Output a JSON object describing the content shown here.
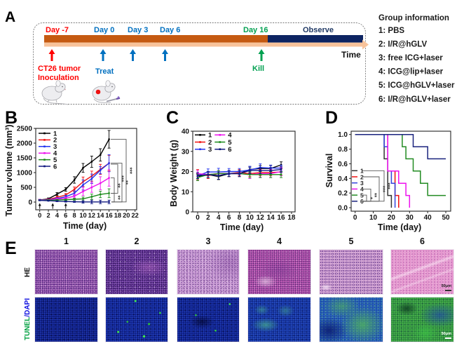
{
  "panel_labels": {
    "a": "A",
    "b": "B",
    "c": "C",
    "d": "D",
    "e": "E"
  },
  "timeline": {
    "milestones": [
      {
        "label": "Day -7",
        "color": "#FF0000"
      },
      {
        "label": "Day 0",
        "color": "#0070C0"
      },
      {
        "label": "Day 3",
        "color": "#0070C0"
      },
      {
        "label": "Day 6",
        "color": "#0070C0"
      },
      {
        "label": "Day 16",
        "color": "#00A050"
      }
    ],
    "observe_label": "Observe",
    "time_label": "Time",
    "inoculation_lines": [
      "CT26 tumor",
      "Inoculation"
    ],
    "treat_label": "Treat",
    "kill_label": "Kill",
    "colors": {
      "treatment_phase": "#C55A11",
      "observe_phase": "#0D2462",
      "time_arrow": "#F8C39B",
      "inoculation": "#FF0000",
      "treat": "#0070C0",
      "kill": "#00A050",
      "observe_text": "#1F3864"
    }
  },
  "group_info": {
    "title": "Group information",
    "items": [
      "1:  PBS",
      "2:  I/R@hGLV",
      "3:  free ICG+laser",
      "4:  ICG@lip+laser",
      "5:  ICG@hGLV+laser",
      "6:  I/R@hGLV+laser"
    ]
  },
  "chart_data": [
    {
      "id": "tumour-volume",
      "panel": "B",
      "type": "line",
      "title": "",
      "xlabel": "Time (day)",
      "ylabel": "Tumour volume (mm³)",
      "x": [
        0,
        2,
        4,
        6,
        8,
        10,
        12,
        14,
        16
      ],
      "xlim": [
        -0.92,
        22.38
      ],
      "ylim": [
        -262,
        2500
      ],
      "xticks": [
        0,
        2,
        4,
        6,
        8,
        10,
        12,
        14,
        16,
        18,
        20,
        22
      ],
      "xtick_labels": [
        "0",
        "2",
        "4",
        "6",
        "8",
        "10",
        "12",
        "14",
        "16",
        "18",
        "20",
        "22"
      ],
      "yticks": [
        0,
        500,
        1000,
        1500,
        2000,
        2500
      ],
      "ytick_labels": [
        "0",
        "500",
        "1000",
        "1500",
        "2000",
        "2500"
      ],
      "grid": false,
      "legend": "top-left",
      "colors": [
        "#000000",
        "#F01010",
        "#2233EE",
        "#EE11EE",
        "#1A8A1A",
        "#101880"
      ],
      "series": [
        {
          "name": "1",
          "values": [
            70,
            110,
            270,
            430,
            750,
            1160,
            1370,
            1600,
            2130
          ],
          "errors": [
            20,
            30,
            50,
            60,
            110,
            150,
            190,
            210,
            300
          ]
        },
        {
          "name": "2",
          "values": [
            70,
            90,
            160,
            240,
            430,
            690,
            880,
            1110,
            1320
          ],
          "errors": [
            20,
            20,
            40,
            50,
            80,
            160,
            170,
            170,
            260
          ]
        },
        {
          "name": "3",
          "values": [
            70,
            80,
            120,
            180,
            300,
            580,
            790,
            1080,
            1320
          ],
          "errors": [
            20,
            20,
            30,
            50,
            80,
            170,
            160,
            120,
            290
          ]
        },
        {
          "name": "4",
          "values": [
            70,
            75,
            100,
            130,
            200,
            360,
            500,
            640,
            820
          ],
          "errors": [
            20,
            20,
            30,
            40,
            60,
            140,
            170,
            220,
            280
          ]
        },
        {
          "name": "5",
          "values": [
            65,
            65,
            70,
            80,
            95,
            110,
            180,
            260,
            300
          ],
          "errors": [
            15,
            15,
            20,
            20,
            30,
            60,
            90,
            110,
            150
          ]
        },
        {
          "name": "6",
          "values": [
            60,
            45,
            30,
            20,
            10,
            5,
            5,
            5,
            5
          ],
          "errors": [
            10,
            10,
            15,
            20,
            20,
            40,
            60,
            60,
            60
          ]
        }
      ],
      "treatment_days": [
        0,
        3,
        6
      ],
      "significance": [
        {
          "groups": [
            "1",
            "6"
          ],
          "label": "***"
        },
        {
          "groups": [
            "2",
            "6"
          ],
          "label": "**"
        },
        {
          "groups": [
            "3",
            "5"
          ],
          "label": "***"
        },
        {
          "groups": [
            "4",
            "5"
          ],
          "label": "**"
        },
        {
          "groups": [
            "5",
            "6"
          ],
          "label": "**"
        }
      ]
    },
    {
      "id": "body-weight",
      "panel": "C",
      "type": "line",
      "title": "",
      "xlabel": "Time (day)",
      "ylabel": "Body Weight (g)",
      "x": [
        0,
        2,
        4,
        6,
        8,
        10,
        12,
        14,
        16
      ],
      "xlim": [
        -0.94,
        18.68
      ],
      "ylim": [
        0,
        40
      ],
      "xticks": [
        0,
        2,
        4,
        6,
        8,
        10,
        12,
        14,
        16,
        18
      ],
      "xtick_labels": [
        "0",
        "2",
        "4",
        "6",
        "8",
        "10",
        "12",
        "14",
        "16",
        "18"
      ],
      "yticks": [
        0,
        10,
        20,
        30,
        40
      ],
      "ytick_labels": [
        "0",
        "10",
        "20",
        "30",
        "40"
      ],
      "grid": false,
      "legend": "top-left",
      "colors": [
        "#000000",
        "#F01010",
        "#2233EE",
        "#EE11EE",
        "#1A8A1A",
        "#101880"
      ],
      "series": [
        {
          "name": "1",
          "values": [
            17.5,
            18.5,
            17.5,
            19,
            19,
            21,
            21.5,
            21.5,
            23.3
          ],
          "errors": [
            1.5,
            1.5,
            1.5,
            1.5,
            1.5,
            1.5,
            1.5,
            1.5,
            1.5
          ]
        },
        {
          "name": "2",
          "values": [
            18.5,
            18,
            19,
            19,
            19.5,
            19,
            19.5,
            19.5,
            19.8
          ],
          "errors": [
            2.5,
            1.5,
            1.5,
            1.5,
            1.5,
            1.5,
            1.5,
            1.5,
            1.5
          ]
        },
        {
          "name": "3",
          "values": [
            18,
            19.8,
            19.8,
            20,
            20,
            20.8,
            22,
            21.7,
            21.7
          ],
          "errors": [
            1.5,
            1.5,
            1.8,
            1.5,
            1.5,
            1.8,
            1.8,
            1.5,
            1.5
          ]
        },
        {
          "name": "4",
          "values": [
            19,
            18.5,
            19,
            19,
            19,
            18.5,
            19,
            19,
            20
          ],
          "errors": [
            1.5,
            1.5,
            1.5,
            1.5,
            1.5,
            2,
            1.8,
            2,
            2
          ]
        },
        {
          "name": "5",
          "values": [
            17,
            18.5,
            19,
            19,
            19,
            18.5,
            18.5,
            18.5,
            18.5
          ],
          "errors": [
            1.5,
            1.5,
            1.5,
            1.5,
            1.5,
            1.5,
            1.5,
            1.5,
            1.5
          ]
        },
        {
          "name": "6",
          "values": [
            18,
            18.5,
            18,
            19,
            19,
            20.5,
            20.5,
            20.5,
            21
          ],
          "errors": [
            1.5,
            1.5,
            1.8,
            1.5,
            1.5,
            1.5,
            1.5,
            1.5,
            1.5
          ]
        }
      ]
    },
    {
      "id": "survival",
      "panel": "D",
      "type": "line",
      "subtype": "kaplan-meier-step",
      "title": "",
      "xlabel": "Time (day)",
      "ylabel": "Survival",
      "xlim": [
        -2.2,
        52.7
      ],
      "ylim": [
        -0.048,
        1.045
      ],
      "xticks": [
        0,
        10,
        20,
        30,
        40,
        50
      ],
      "xtick_labels": [
        "0",
        "10",
        "20",
        "30",
        "40",
        "50"
      ],
      "yticks": [
        0,
        0.2,
        0.4,
        0.6,
        0.8,
        1.0
      ],
      "ytick_labels": [
        "0.0",
        "0.2",
        "0.4",
        "0.6",
        "0.8",
        "1.0"
      ],
      "grid": false,
      "legend": "bottom-left",
      "colors": [
        "#333333",
        "#F01010",
        "#3344DD",
        "#EE11EE",
        "#228B22",
        "#1A237E"
      ],
      "series": [
        {
          "name": "1",
          "times": [
            0,
            16,
            18,
            20
          ],
          "survival": [
            1.0,
            0.667,
            0.167,
            0.0
          ]
        },
        {
          "name": "2",
          "times": [
            0,
            18,
            22,
            24
          ],
          "survival": [
            1.0,
            0.5,
            0.167,
            0.0
          ]
        },
        {
          "name": "3",
          "times": [
            0,
            16,
            18,
            20,
            22
          ],
          "survival": [
            1.0,
            0.833,
            0.5,
            0.333,
            0.0
          ]
        },
        {
          "name": "4",
          "times": [
            0,
            18,
            24,
            28,
            30
          ],
          "survival": [
            1.0,
            0.5,
            0.333,
            0.167,
            0.0
          ]
        },
        {
          "name": "5",
          "times": [
            0,
            26,
            28,
            32,
            36,
            40
          ],
          "survival": [
            1.0,
            0.833,
            0.667,
            0.5,
            0.333,
            0.167
          ],
          "end": 50
        },
        {
          "name": "6",
          "times": [
            0,
            32,
            40
          ],
          "survival": [
            1.0,
            0.833,
            0.667
          ],
          "end": 50
        }
      ],
      "significance": [
        {
          "groups": [
            "1",
            "6"
          ],
          "label": "***"
        },
        {
          "groups": [
            "2",
            "6"
          ],
          "label": "***"
        },
        {
          "groups": [
            "4",
            "6"
          ],
          "label": "**"
        },
        {
          "groups": [
            "5",
            "6"
          ],
          "label": "*"
        }
      ]
    }
  ],
  "histology": {
    "columns": [
      "1",
      "2",
      "3",
      "4",
      "5",
      "6"
    ],
    "row_he": "HE",
    "row_tunel": {
      "tunel": "TUNEL",
      "dapi": "/DAPI",
      "tunel_color": "#00A040",
      "dapi_color": "#1010E0"
    },
    "scale_bar": "50μm"
  }
}
